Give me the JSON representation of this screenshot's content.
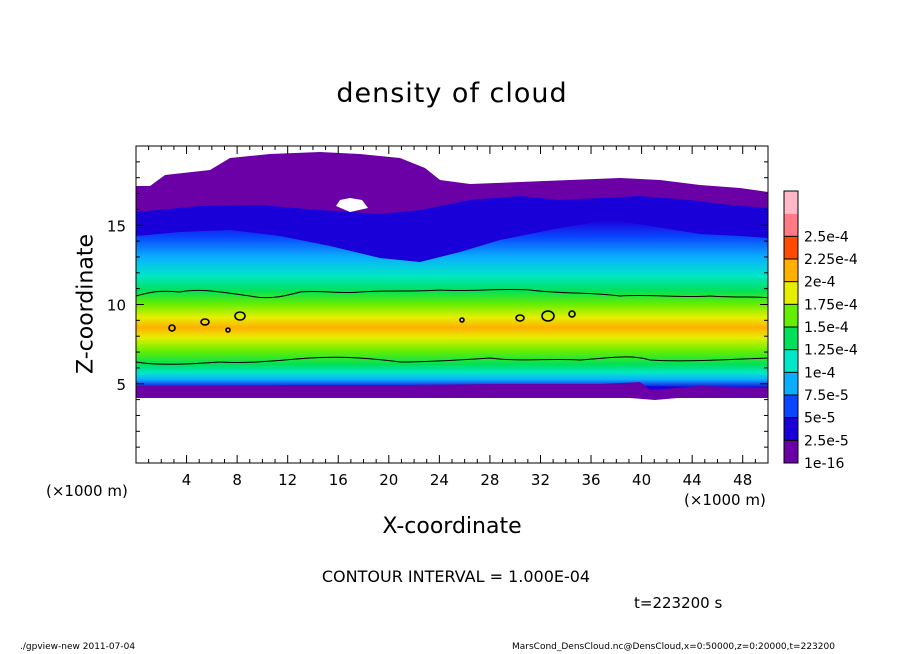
{
  "chart_data": {
    "type": "heatmap",
    "title": "density of cloud",
    "xlabel": "X-coordinate",
    "ylabel": "Z-coordinate",
    "x_unit": "(×1000 m)",
    "xlim": [
      0,
      50
    ],
    "ylim": [
      0,
      20
    ],
    "x_ticks": [
      4,
      8,
      12,
      16,
      20,
      24,
      28,
      32,
      36,
      40,
      44,
      48
    ],
    "y_ticks": [
      5,
      10,
      15
    ],
    "colorbar": {
      "levels": [
        "1e-16",
        "2.5e-5",
        "5e-5",
        "7.5e-5",
        "1e-4",
        "1.25e-4",
        "1.5e-4",
        "1.75e-4",
        "2e-4",
        "2.25e-4",
        "2.5e-4"
      ],
      "colors": [
        "#6a00a6",
        "#1a00d8",
        "#0a46ff",
        "#0aaeff",
        "#00e6c8",
        "#00e05a",
        "#66ee00",
        "#e6ee00",
        "#ffb000",
        "#ff4a00",
        "#ff7a84",
        "#ffb8c8"
      ]
    },
    "contour_interval": "CONTOUR INTERVAL = 1.000E-04",
    "time_label": "t=223200 s"
  },
  "footer": {
    "left": "./gpview-new   2011-07-04",
    "right": "MarsCond_DensCloud.nc@DensCloud,x=0:50000,z=0:20000,t=223200"
  }
}
